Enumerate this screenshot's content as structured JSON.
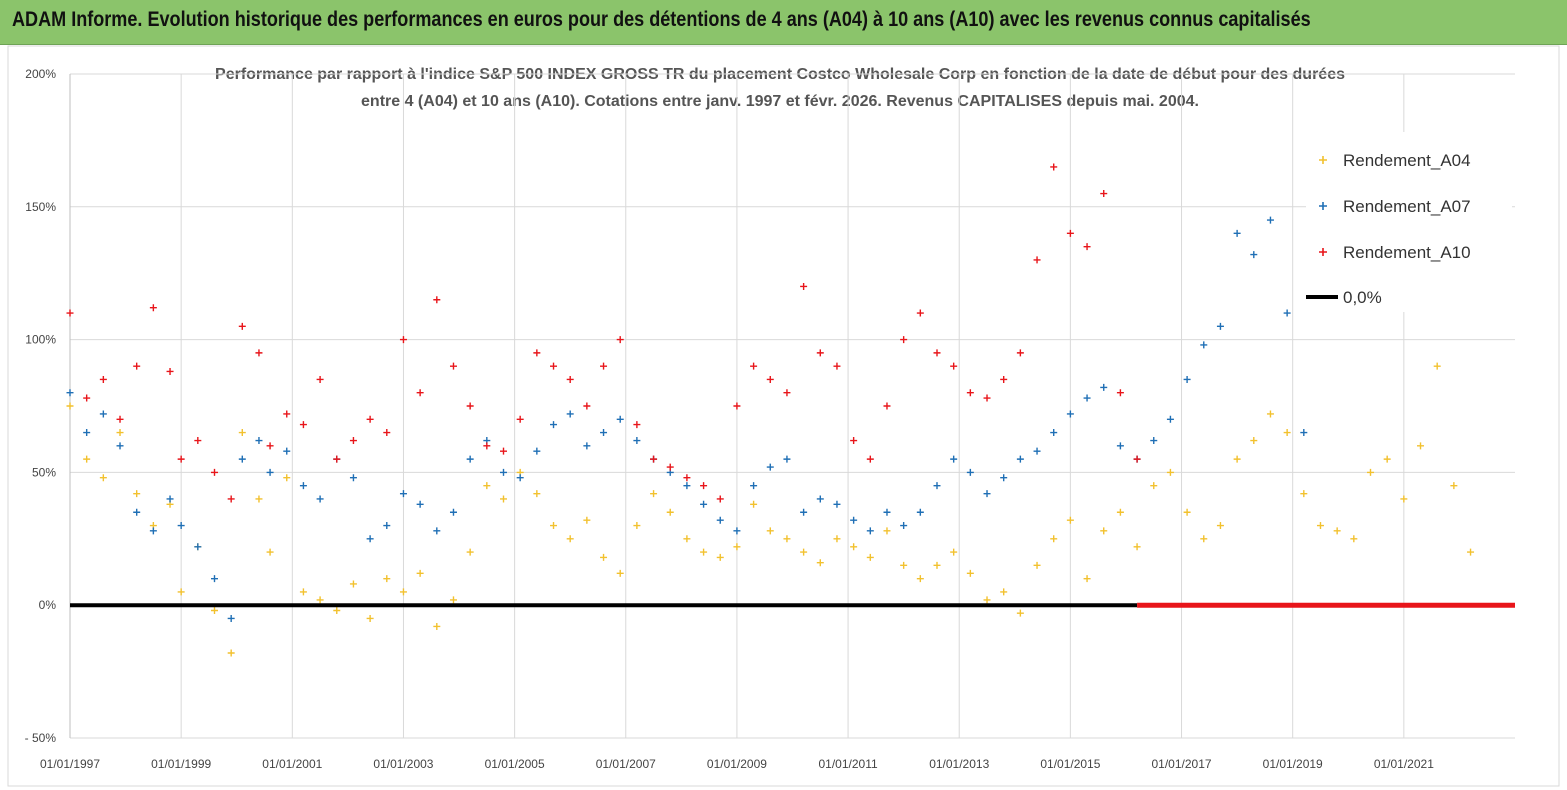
{
  "header": {
    "title": "ADAM Informe. Evolution historique des performances en euros pour des détentions de 4 ans (A04) à 10 ans (A10) avec les revenus connus capitalisés"
  },
  "chart_data": {
    "type": "scatter",
    "title_line1": "Performance par rapport à l'indice S&P 500 INDEX GROSS TR  du placement Costco Wholesale Corp en fonction de la date de début pour des durées",
    "title_line2": "entre 4 (A04) et 10 ans (A10).  Cotations entre janv. 1997 et févr. 2026. Revenus CAPITALISES depuis mai. 2004.",
    "xlabel": "",
    "ylabel": "",
    "x_range": [
      1997.0,
      2023.0
    ],
    "ylim": [
      -50,
      200
    ],
    "y_ticks": [
      -50,
      0,
      50,
      100,
      150,
      200
    ],
    "y_tick_labels": [
      "- 50%",
      "0%",
      "50%",
      "100%",
      "150%",
      "200%"
    ],
    "x_ticks": [
      1997,
      1999,
      2001,
      2003,
      2005,
      2007,
      2009,
      2011,
      2013,
      2015,
      2017,
      2019,
      2021
    ],
    "x_tick_labels": [
      "01/01/1997",
      "01/01/1999",
      "01/01/2001",
      "01/01/2003",
      "01/01/2005",
      "01/01/2007",
      "01/01/2009",
      "01/01/2011",
      "01/01/2013",
      "01/01/2015",
      "01/01/2017",
      "01/01/2019",
      "01/01/2021"
    ],
    "series": [
      {
        "name": "Rendement_A04",
        "color": "#f2c12e",
        "x": [
          1997.0,
          1997.3,
          1997.6,
          1997.9,
          1998.2,
          1998.5,
          1998.8,
          1999.0,
          1999.3,
          1999.6,
          1999.9,
          2000.1,
          2000.4,
          2000.6,
          2000.9,
          2001.2,
          2001.5,
          2001.8,
          2002.1,
          2002.4,
          2002.7,
          2003.0,
          2003.3,
          2003.6,
          2003.9,
          2004.2,
          2004.5,
          2004.8,
          2005.1,
          2005.4,
          2005.7,
          2006.0,
          2006.3,
          2006.6,
          2006.9,
          2007.2,
          2007.5,
          2007.8,
          2008.1,
          2008.4,
          2008.7,
          2009.0,
          2009.3,
          2009.6,
          2009.9,
          2010.2,
          2010.5,
          2010.8,
          2011.1,
          2011.4,
          2011.7,
          2012.0,
          2012.3,
          2012.6,
          2012.9,
          2013.2,
          2013.5,
          2013.8,
          2014.1,
          2014.4,
          2014.7,
          2015.0,
          2015.3,
          2015.6,
          2015.9,
          2016.2,
          2016.5,
          2016.8,
          2017.1,
          2017.4,
          2017.7,
          2018.0,
          2018.3,
          2018.6,
          2018.9,
          2019.2,
          2019.5,
          2019.8,
          2020.1,
          2020.4,
          2020.7,
          2021.0,
          2021.3,
          2021.6,
          2021.9,
          2022.2
        ],
        "y": [
          75,
          55,
          48,
          65,
          42,
          30,
          38,
          5,
          22,
          -2,
          -18,
          65,
          40,
          20,
          48,
          5,
          2,
          -2,
          8,
          -5,
          10,
          5,
          12,
          -8,
          2,
          20,
          45,
          40,
          50,
          42,
          30,
          25,
          32,
          18,
          12,
          30,
          42,
          35,
          25,
          20,
          18,
          22,
          38,
          28,
          25,
          20,
          16,
          25,
          22,
          18,
          28,
          15,
          10,
          15,
          20,
          12,
          2,
          5,
          -3,
          15,
          25,
          32,
          10,
          28,
          35,
          22,
          45,
          50,
          35,
          25,
          30,
          55,
          62,
          72,
          65,
          42,
          30,
          28,
          25,
          50,
          55,
          40,
          60,
          90,
          45,
          20
        ]
      },
      {
        "name": "Rendement_A07",
        "color": "#1f6fb5",
        "x": [
          1997.0,
          1997.3,
          1997.6,
          1997.9,
          1998.2,
          1998.5,
          1998.8,
          1999.0,
          1999.3,
          1999.6,
          1999.9,
          2000.1,
          2000.4,
          2000.6,
          2000.9,
          2001.2,
          2001.5,
          2001.8,
          2002.1,
          2002.4,
          2002.7,
          2003.0,
          2003.3,
          2003.6,
          2003.9,
          2004.2,
          2004.5,
          2004.8,
          2005.1,
          2005.4,
          2005.7,
          2006.0,
          2006.3,
          2006.6,
          2006.9,
          2007.2,
          2007.5,
          2007.8,
          2008.1,
          2008.4,
          2008.7,
          2009.0,
          2009.3,
          2009.6,
          2009.9,
          2010.2,
          2010.5,
          2010.8,
          2011.1,
          2011.4,
          2011.7,
          2012.0,
          2012.3,
          2012.6,
          2012.9,
          2013.2,
          2013.5,
          2013.8,
          2014.1,
          2014.4,
          2014.7,
          2015.0,
          2015.3,
          2015.6,
          2015.9,
          2016.2,
          2016.5,
          2016.8,
          2017.1,
          2017.4,
          2017.7,
          2018.0,
          2018.3,
          2018.6,
          2018.9,
          2019.2
        ],
        "y": [
          80,
          65,
          72,
          60,
          35,
          28,
          40,
          30,
          22,
          10,
          -5,
          55,
          62,
          50,
          58,
          45,
          40,
          55,
          48,
          25,
          30,
          42,
          38,
          28,
          35,
          55,
          62,
          50,
          48,
          58,
          68,
          72,
          60,
          65,
          70,
          62,
          55,
          50,
          45,
          38,
          32,
          28,
          45,
          52,
          55,
          35,
          40,
          38,
          32,
          28,
          35,
          30,
          35,
          45,
          55,
          50,
          42,
          48,
          55,
          58,
          65,
          72,
          78,
          82,
          60,
          55,
          62,
          70,
          85,
          98,
          105,
          140,
          132,
          145,
          110,
          65
        ]
      },
      {
        "name": "Rendement_A10",
        "color": "#e8151a",
        "x": [
          1997.0,
          1997.3,
          1997.6,
          1997.9,
          1998.2,
          1998.5,
          1998.8,
          1999.0,
          1999.3,
          1999.6,
          1999.9,
          2000.1,
          2000.4,
          2000.6,
          2000.9,
          2001.2,
          2001.5,
          2001.8,
          2002.1,
          2002.4,
          2002.7,
          2003.0,
          2003.3,
          2003.6,
          2003.9,
          2004.2,
          2004.5,
          2004.8,
          2005.1,
          2005.4,
          2005.7,
          2006.0,
          2006.3,
          2006.6,
          2006.9,
          2007.2,
          2007.5,
          2007.8,
          2008.1,
          2008.4,
          2008.7,
          2009.0,
          2009.3,
          2009.6,
          2009.9,
          2010.2,
          2010.5,
          2010.8,
          2011.1,
          2011.4,
          2011.7,
          2012.0,
          2012.3,
          2012.6,
          2012.9,
          2013.2,
          2013.5,
          2013.8,
          2014.1,
          2014.4,
          2014.7,
          2015.0,
          2015.3,
          2015.6,
          2015.9,
          2016.2
        ],
        "y": [
          110,
          78,
          85,
          70,
          90,
          112,
          88,
          55,
          62,
          50,
          40,
          105,
          95,
          60,
          72,
          68,
          85,
          55,
          62,
          70,
          65,
          100,
          80,
          115,
          90,
          75,
          60,
          58,
          70,
          95,
          90,
          85,
          75,
          90,
          100,
          68,
          55,
          52,
          48,
          45,
          40,
          75,
          90,
          85,
          80,
          120,
          95,
          90,
          62,
          55,
          75,
          100,
          110,
          95,
          90,
          80,
          78,
          85,
          95,
          130,
          165,
          140,
          135,
          155,
          80,
          55
        ]
      },
      {
        "name": "0,0%",
        "color": "#000000",
        "x": [
          1997.0,
          2016.2
        ],
        "y": [
          0,
          0
        ]
      }
    ],
    "zero_segment_red": {
      "x": [
        2016.2,
        2023.0
      ],
      "y": [
        0,
        0
      ]
    },
    "legend": {
      "position": "top-right",
      "items": [
        {
          "label": "Rendement_A04",
          "color": "#f2c12e",
          "marker": "cross"
        },
        {
          "label": "Rendement_A07",
          "color": "#1f6fb5",
          "marker": "cross"
        },
        {
          "label": "Rendement_A10",
          "color": "#e8151a",
          "marker": "cross"
        },
        {
          "label": "0,0%",
          "color": "#000000",
          "marker": "line"
        }
      ]
    },
    "grid": true
  }
}
